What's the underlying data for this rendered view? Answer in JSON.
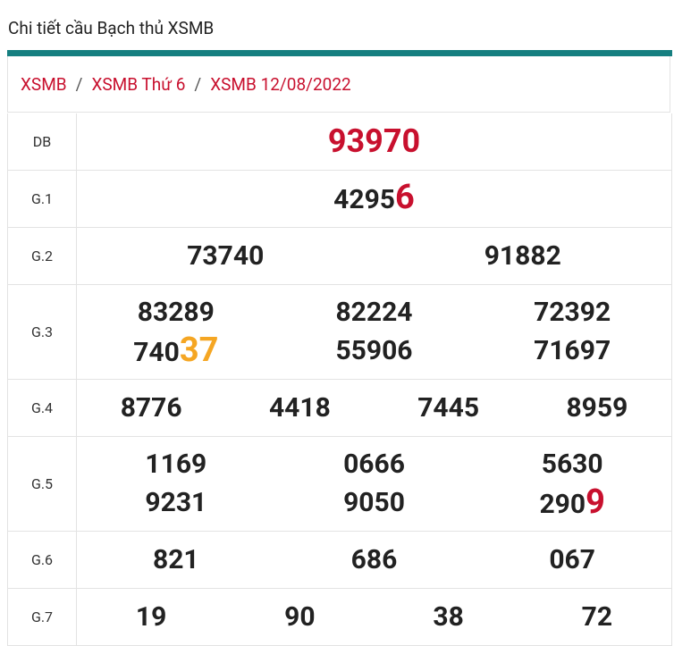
{
  "header": {
    "title": "Chi tiết cầu Bạch thủ XSMB"
  },
  "breadcrumb": {
    "items": [
      "XSMB",
      "XSMB Thứ 6",
      "XSMB 12/08/2022"
    ],
    "separator": "/"
  },
  "table": {
    "rows": [
      {
        "label": "DB",
        "numbers": [
          "93970"
        ],
        "special": true
      },
      {
        "label": "G.1",
        "numbers": [
          {
            "base": "4295",
            "highlight": "6",
            "color": "#c8102e"
          }
        ]
      },
      {
        "label": "G.2",
        "numbers": [
          "73740",
          "91882"
        ]
      },
      {
        "label": "G.3",
        "numbers": [
          "83289",
          "82224",
          "72392",
          {
            "base": "740",
            "highlight": "37",
            "color": "#f5a623"
          },
          "55906",
          "71697"
        ]
      },
      {
        "label": "G.4",
        "numbers": [
          "8776",
          "4418",
          "7445",
          "8959"
        ]
      },
      {
        "label": "G.5",
        "numbers": [
          "1169",
          "0666",
          "5630",
          "9231",
          "9050",
          {
            "base": "290",
            "highlight": "9",
            "color": "#c8102e"
          }
        ]
      },
      {
        "label": "G.6",
        "numbers": [
          "821",
          "686",
          "067"
        ]
      },
      {
        "label": "G.7",
        "numbers": [
          "19",
          "90",
          "38",
          "72"
        ]
      }
    ]
  }
}
